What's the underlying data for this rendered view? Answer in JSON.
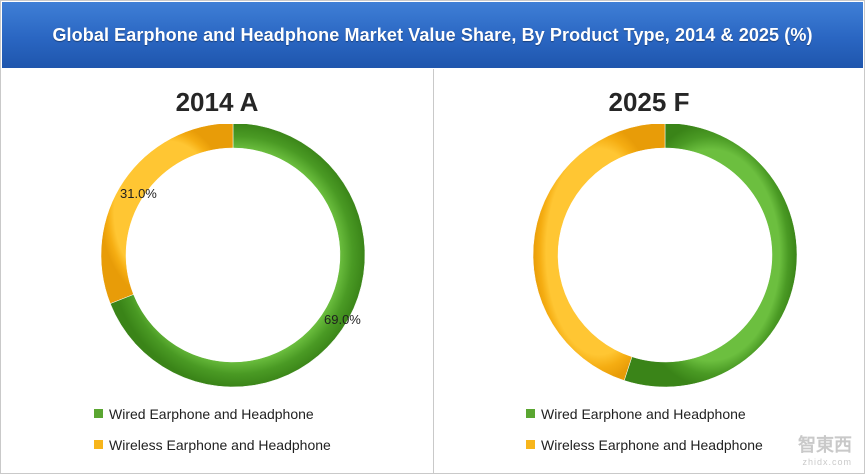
{
  "header": {
    "title": "Global Earphone and Headphone Market Value Share, By Product Type, 2014 & 2025 (%)"
  },
  "colors": {
    "wired": "#5aa631",
    "wireless": "#f7b51b"
  },
  "chart_data": [
    {
      "type": "pie",
      "title": "2014 A",
      "categories": [
        "Wired Earphone and Headphone",
        "Wireless Earphone and Headphone"
      ],
      "values": [
        69.0,
        31.0
      ],
      "data_labels": [
        "69.0%",
        "31.0%"
      ],
      "legend": "bottom"
    },
    {
      "type": "pie",
      "title": "2025 F",
      "categories": [
        "Wired Earphone and Headphone",
        "Wireless Earphone and Headphone"
      ],
      "values": [
        55,
        45
      ],
      "data_labels": [
        "",
        ""
      ],
      "legend": "bottom"
    }
  ],
  "watermark": {
    "text": "智東西",
    "subtext": "zhidx.com"
  }
}
